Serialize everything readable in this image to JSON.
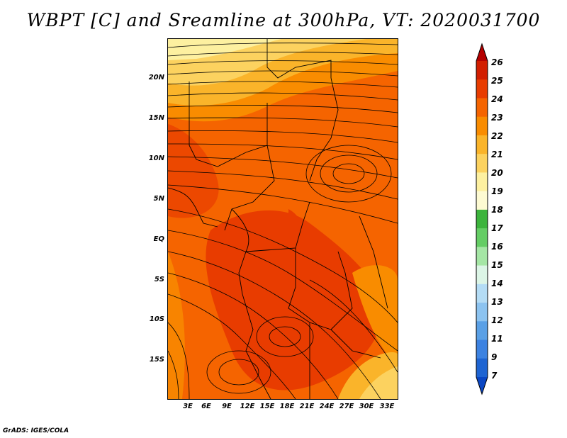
{
  "title": "WBPT [C] and Sreamline at 300hPa, VT: 2020031700",
  "footer": "GrADS: IGES/COLA",
  "axes": {
    "y_labels": [
      "20N",
      "15N",
      "10N",
      "5N",
      "EQ",
      "5S",
      "10S",
      "15S"
    ],
    "x_labels": [
      "3E",
      "6E",
      "9E",
      "12E",
      "15E",
      "18E",
      "21E",
      "24E",
      "27E",
      "30E",
      "33E"
    ]
  },
  "colorbar": {
    "labels": [
      "26",
      "25",
      "24",
      "23",
      "22",
      "21",
      "20",
      "19",
      "18",
      "17",
      "16",
      "15",
      "14",
      "13",
      "12",
      "11",
      "9",
      "7"
    ],
    "colors": [
      "#b40000",
      "#d21e00",
      "#e83c00",
      "#f56400",
      "#f98c00",
      "#fab42a",
      "#fcd25f",
      "#fdf0a0",
      "#fdfad2",
      "#3cb43c",
      "#64cd64",
      "#a5e6a5",
      "#dcf5e6",
      "#b4dcf5",
      "#8cc3f0",
      "#5aa0e6",
      "#3c82e1",
      "#1e64d2",
      "#0a46c3"
    ]
  }
}
